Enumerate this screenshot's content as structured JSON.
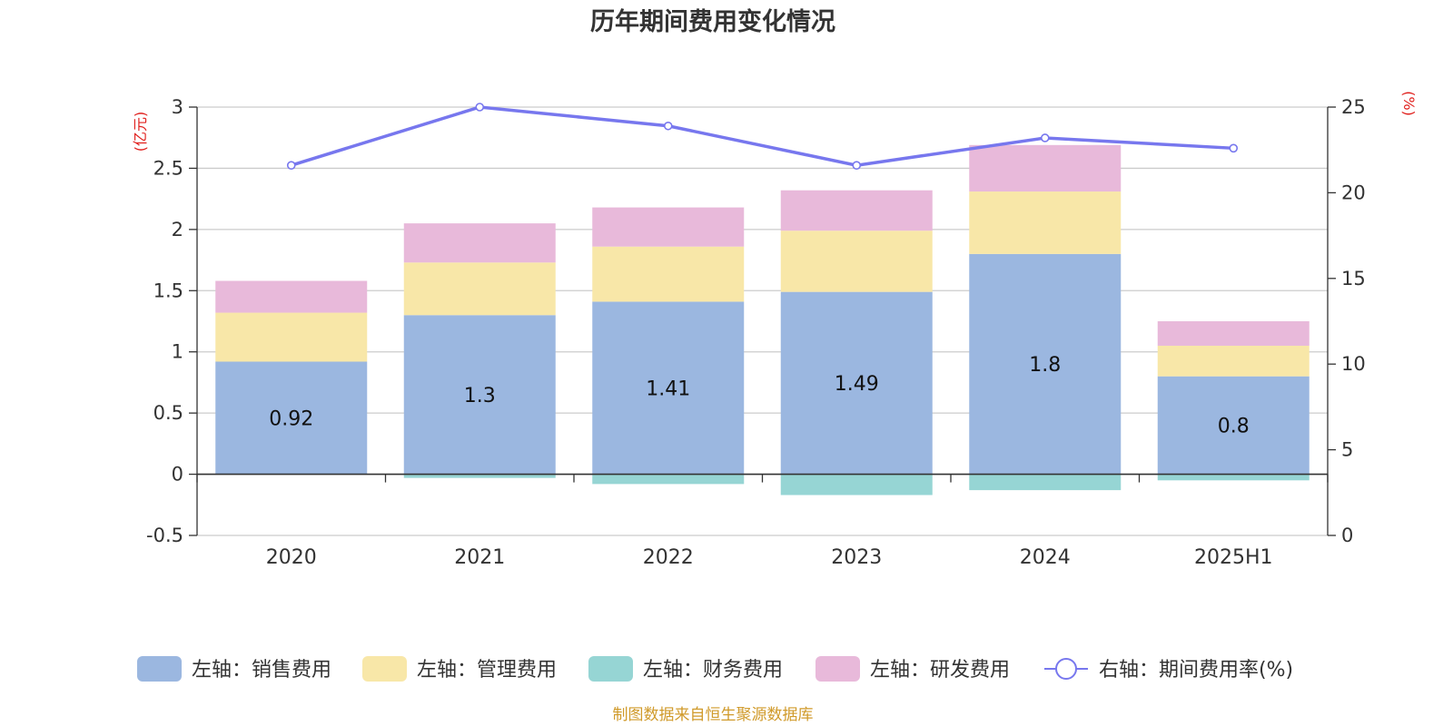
{
  "chart_data": {
    "type": "bar",
    "title": "历年期间费用变化情况",
    "categories": [
      "2020",
      "2021",
      "2022",
      "2023",
      "2024",
      "2025H1"
    ],
    "left_axis": {
      "unit": "(亿元)",
      "ylim": [
        -0.5,
        3
      ],
      "ticks": [
        "3",
        "2.5",
        "2",
        "1.5",
        "1",
        "0.5",
        "0",
        "-0.5"
      ]
    },
    "right_axis": {
      "unit": "(%)",
      "ylim": [
        0,
        25
      ],
      "ticks": [
        "25",
        "20",
        "15",
        "10",
        "5",
        "0"
      ]
    },
    "series": [
      {
        "name": "左轴：销售费用",
        "type": "bar",
        "color": "#9bb7e0",
        "values": [
          0.92,
          1.3,
          1.41,
          1.49,
          1.8,
          0.8
        ],
        "labels": [
          "0.92",
          "1.3",
          "1.41",
          "1.49",
          "1.8",
          "0.8"
        ]
      },
      {
        "name": "左轴：管理费用",
        "type": "bar",
        "color": "#f8e7a8",
        "values": [
          0.4,
          0.43,
          0.45,
          0.5,
          0.51,
          0.25
        ]
      },
      {
        "name": "左轴：财务费用",
        "type": "bar",
        "color": "#96d5d4",
        "values": [
          0.0,
          -0.03,
          -0.08,
          -0.17,
          -0.13,
          -0.05
        ]
      },
      {
        "name": "左轴：研发费用",
        "type": "bar",
        "color": "#e8b9da",
        "values": [
          0.26,
          0.32,
          0.32,
          0.33,
          0.38,
          0.2
        ]
      },
      {
        "name": "右轴：期间费用率(%)",
        "type": "line",
        "color": "#7777ee",
        "values": [
          21.6,
          25.0,
          23.9,
          21.6,
          23.2,
          22.6
        ]
      }
    ],
    "grid": true,
    "legend_position": "bottom"
  },
  "footer": {
    "source": "制图数据来自恒生聚源数据库"
  },
  "colors": {
    "axis_unit": "#e0201d",
    "source": "#d09a2a",
    "grid": "#cccccc",
    "axis": "#333333"
  }
}
